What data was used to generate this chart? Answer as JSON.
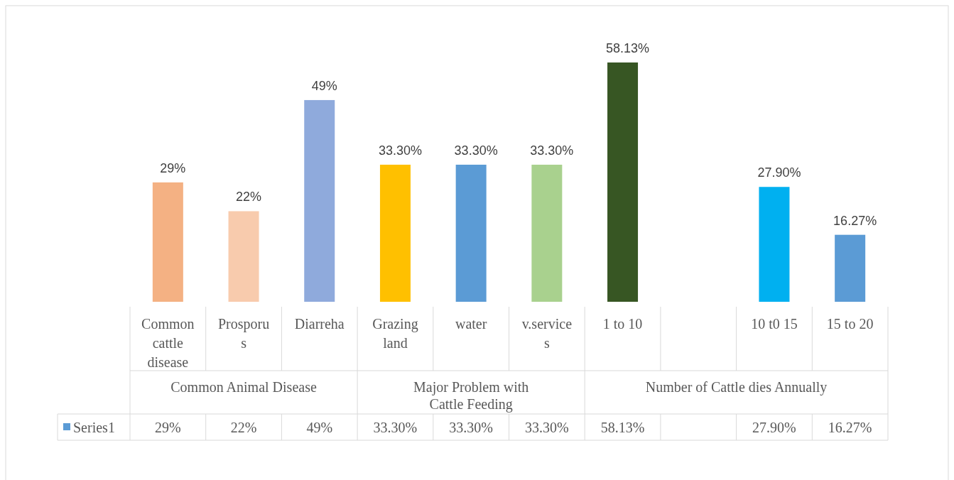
{
  "chart_data": {
    "type": "bar",
    "categories": [
      "Common cattle disease",
      "Prosporus",
      "Diarreha",
      "Grazing land",
      "water",
      "v.services",
      "1 to 10",
      null,
      "10 t0 15",
      "15 to 20"
    ],
    "series": [
      {
        "name": "Series1",
        "color": "#5b9bd5",
        "colors": [
          "#f4b183",
          "#f8cbad",
          "#8faadc",
          "#ffc000",
          "#5b9bd5",
          "#a9d18e",
          "#375623",
          null,
          "#00b0f0",
          "#5b9bd5"
        ],
        "values": [
          29,
          22,
          49,
          33.3,
          33.3,
          33.3,
          58.13,
          null,
          27.9,
          16.27
        ],
        "value_labels": [
          "29%",
          "22%",
          "49%",
          "33.30%",
          "33.30%",
          "33.30%",
          "58.13%",
          null,
          "27.90%",
          "16.27%"
        ]
      }
    ],
    "annotations": [
      "Common Animal Disease",
      "Major Problem with Cattle Feeding",
      "Number of Cattle dies Annually"
    ],
    "legend": "bottom left"
  }
}
